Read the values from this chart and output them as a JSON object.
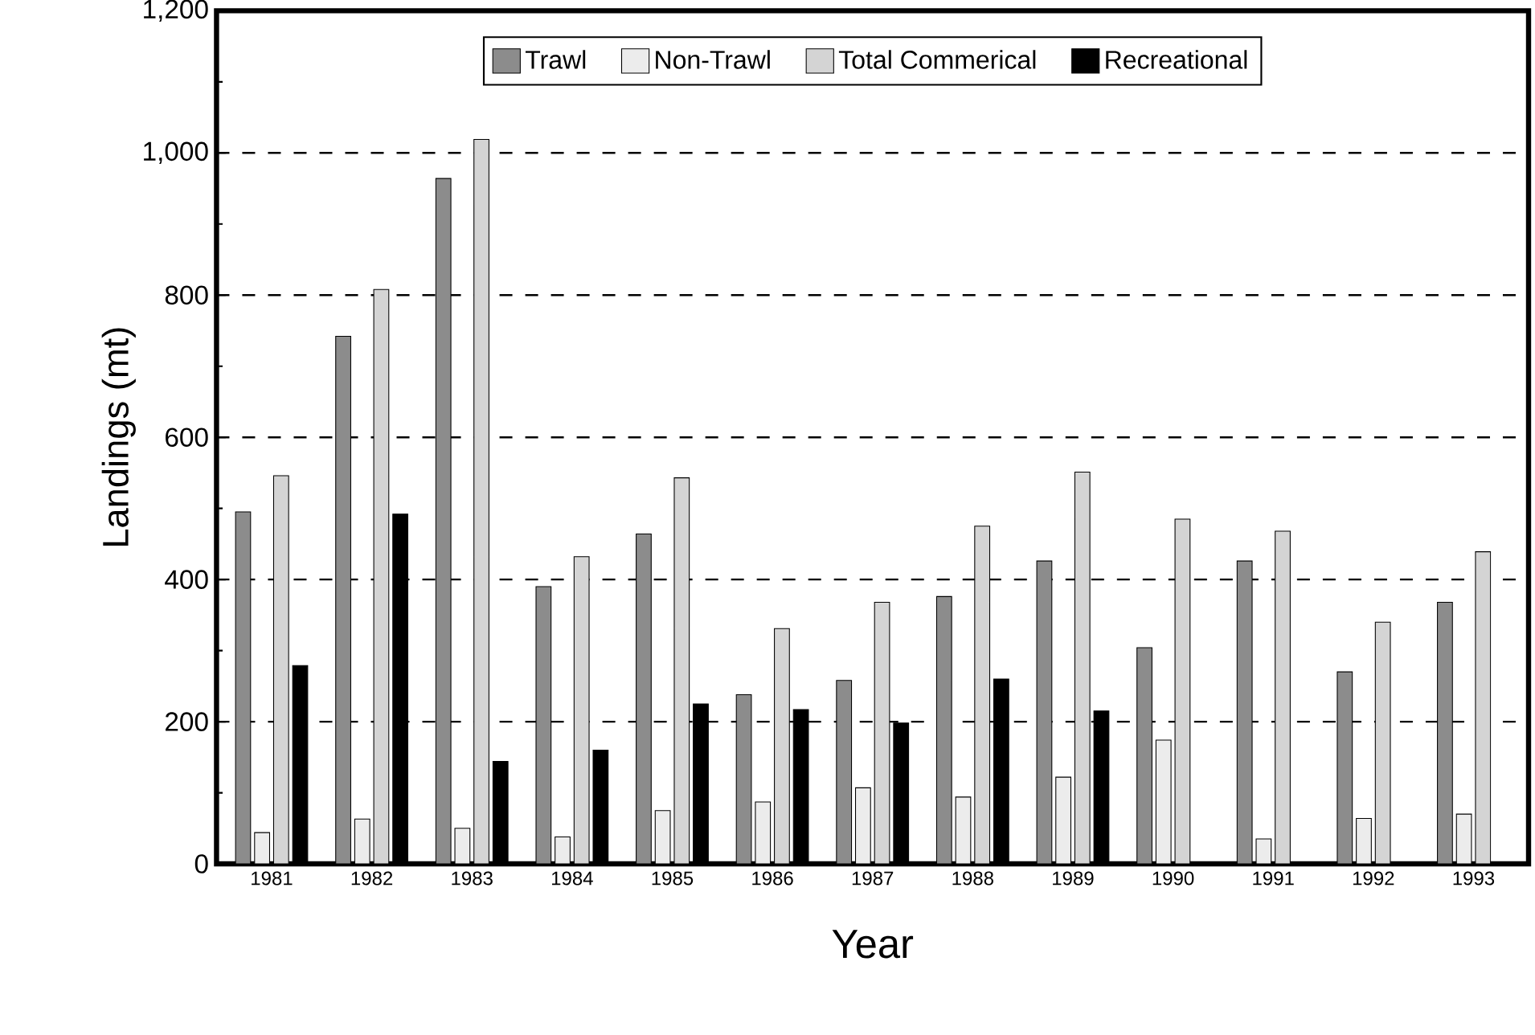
{
  "chart_data": {
    "type": "bar",
    "xlabel": "Year",
    "ylabel": "Landings (mt)",
    "categories": [
      "1981",
      "1982",
      "1983",
      "1984",
      "1985",
      "1986",
      "1987",
      "1988",
      "1989",
      "1990",
      "1991",
      "1992",
      "1993"
    ],
    "series": [
      {
        "name": "Trawl",
        "color": "#8c8c8c",
        "values": [
          495,
          742,
          964,
          390,
          464,
          238,
          258,
          376,
          426,
          304,
          426,
          270,
          368
        ]
      },
      {
        "name": "Non-Trawl",
        "color": "#ececec",
        "values": [
          44,
          63,
          50,
          38,
          75,
          87,
          107,
          94,
          122,
          174,
          35,
          64,
          70
        ]
      },
      {
        "name": "Total Commerical",
        "color": "#d4d4d4",
        "values": [
          546,
          808,
          1019,
          432,
          543,
          331,
          368,
          475,
          551,
          485,
          468,
          340,
          439
        ]
      },
      {
        "name": "Recreational",
        "color": "#000000",
        "values": [
          279,
          492,
          144,
          160,
          225,
          217,
          198,
          260,
          215,
          null,
          null,
          null,
          null
        ]
      }
    ],
    "ylim": [
      0,
      1200
    ],
    "yticks": [
      0,
      200,
      400,
      600,
      800,
      {
        "value": 1000,
        "label": "1,000"
      },
      {
        "value": 1200,
        "label": "1,200"
      }
    ],
    "grid": "y",
    "legend": "top"
  }
}
